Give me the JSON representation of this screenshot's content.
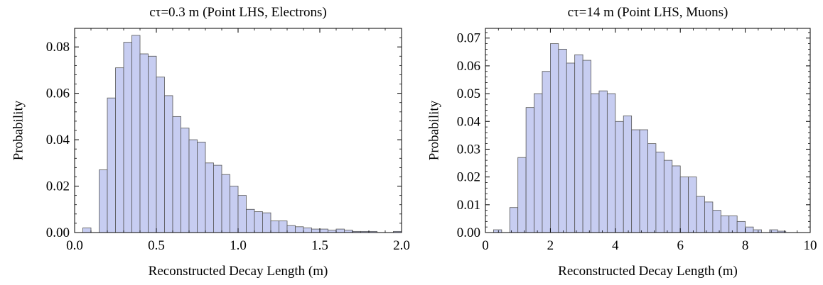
{
  "chart_data": [
    {
      "type": "bar",
      "title": "cτ=0.3 m (Point LHS, Electrons)",
      "xlabel": "Reconstructed Decay Length (m)",
      "ylabel": "Probability",
      "xlim": [
        0.0,
        2.0
      ],
      "ylim": [
        0.0,
        0.088
      ],
      "xticks": [
        "0.0",
        "0.5",
        "1.0",
        "1.5",
        "2.0"
      ],
      "yticks": [
        "0.00",
        "0.02",
        "0.04",
        "0.06",
        "0.08"
      ],
      "bin_width": 0.05,
      "bins": [
        {
          "x": 0.05,
          "y": 0.002
        },
        {
          "x": 0.1,
          "y": 0.0
        },
        {
          "x": 0.15,
          "y": 0.027
        },
        {
          "x": 0.2,
          "y": 0.058
        },
        {
          "x": 0.25,
          "y": 0.071
        },
        {
          "x": 0.3,
          "y": 0.082
        },
        {
          "x": 0.35,
          "y": 0.085
        },
        {
          "x": 0.4,
          "y": 0.077
        },
        {
          "x": 0.45,
          "y": 0.076
        },
        {
          "x": 0.5,
          "y": 0.067
        },
        {
          "x": 0.55,
          "y": 0.059
        },
        {
          "x": 0.6,
          "y": 0.05
        },
        {
          "x": 0.65,
          "y": 0.045
        },
        {
          "x": 0.7,
          "y": 0.04
        },
        {
          "x": 0.75,
          "y": 0.039
        },
        {
          "x": 0.8,
          "y": 0.03
        },
        {
          "x": 0.85,
          "y": 0.029
        },
        {
          "x": 0.9,
          "y": 0.025
        },
        {
          "x": 0.95,
          "y": 0.02
        },
        {
          "x": 1.0,
          "y": 0.016
        },
        {
          "x": 1.05,
          "y": 0.01
        },
        {
          "x": 1.1,
          "y": 0.009
        },
        {
          "x": 1.15,
          "y": 0.0085
        },
        {
          "x": 1.2,
          "y": 0.005
        },
        {
          "x": 1.25,
          "y": 0.005
        },
        {
          "x": 1.3,
          "y": 0.003
        },
        {
          "x": 1.35,
          "y": 0.0025
        },
        {
          "x": 1.4,
          "y": 0.002
        },
        {
          "x": 1.45,
          "y": 0.0015
        },
        {
          "x": 1.5,
          "y": 0.0015
        },
        {
          "x": 1.55,
          "y": 0.001
        },
        {
          "x": 1.6,
          "y": 0.0015
        },
        {
          "x": 1.65,
          "y": 0.001
        },
        {
          "x": 1.7,
          "y": 0.0005
        },
        {
          "x": 1.75,
          "y": 0.0005
        },
        {
          "x": 1.8,
          "y": 0.0005
        },
        {
          "x": 1.85,
          "y": 0.0
        },
        {
          "x": 1.9,
          "y": 0.0
        },
        {
          "x": 1.95,
          "y": 0.0005
        }
      ],
      "bar_color": "#c7cdf1",
      "edge_color": "#555555"
    },
    {
      "type": "bar",
      "title": "cτ=14 m (Point LHS, Muons)",
      "xlabel": "Reconstructed Decay Length (m)",
      "ylabel": "Probability",
      "xlim": [
        0.0,
        10.0
      ],
      "ylim": [
        0.0,
        0.0735
      ],
      "xticks": [
        "0",
        "2",
        "4",
        "6",
        "8",
        "10"
      ],
      "yticks": [
        "0.00",
        "0.01",
        "0.02",
        "0.03",
        "0.04",
        "0.05",
        "0.06",
        "0.07"
      ],
      "bin_width": 0.25,
      "bins": [
        {
          "x": 0.25,
          "y": 0.001
        },
        {
          "x": 0.5,
          "y": 0.0
        },
        {
          "x": 0.75,
          "y": 0.009
        },
        {
          "x": 1.0,
          "y": 0.027
        },
        {
          "x": 1.25,
          "y": 0.045
        },
        {
          "x": 1.5,
          "y": 0.05
        },
        {
          "x": 1.75,
          "y": 0.058
        },
        {
          "x": 2.0,
          "y": 0.068
        },
        {
          "x": 2.25,
          "y": 0.066
        },
        {
          "x": 2.5,
          "y": 0.061
        },
        {
          "x": 2.75,
          "y": 0.064
        },
        {
          "x": 3.0,
          "y": 0.062
        },
        {
          "x": 3.25,
          "y": 0.05
        },
        {
          "x": 3.5,
          "y": 0.051
        },
        {
          "x": 3.75,
          "y": 0.05
        },
        {
          "x": 4.0,
          "y": 0.04
        },
        {
          "x": 4.25,
          "y": 0.042
        },
        {
          "x": 4.5,
          "y": 0.037
        },
        {
          "x": 4.75,
          "y": 0.037
        },
        {
          "x": 5.0,
          "y": 0.032
        },
        {
          "x": 5.25,
          "y": 0.029
        },
        {
          "x": 5.5,
          "y": 0.026
        },
        {
          "x": 5.75,
          "y": 0.024
        },
        {
          "x": 6.0,
          "y": 0.02
        },
        {
          "x": 6.25,
          "y": 0.02
        },
        {
          "x": 6.5,
          "y": 0.013
        },
        {
          "x": 6.75,
          "y": 0.011
        },
        {
          "x": 7.0,
          "y": 0.008
        },
        {
          "x": 7.25,
          "y": 0.006
        },
        {
          "x": 7.5,
          "y": 0.006
        },
        {
          "x": 7.75,
          "y": 0.004
        },
        {
          "x": 8.0,
          "y": 0.002
        },
        {
          "x": 8.25,
          "y": 0.001
        },
        {
          "x": 8.5,
          "y": 0.0
        },
        {
          "x": 8.75,
          "y": 0.001
        },
        {
          "x": 9.0,
          "y": 0.0005
        }
      ],
      "bar_color": "#c7cdf1",
      "edge_color": "#555555"
    }
  ]
}
